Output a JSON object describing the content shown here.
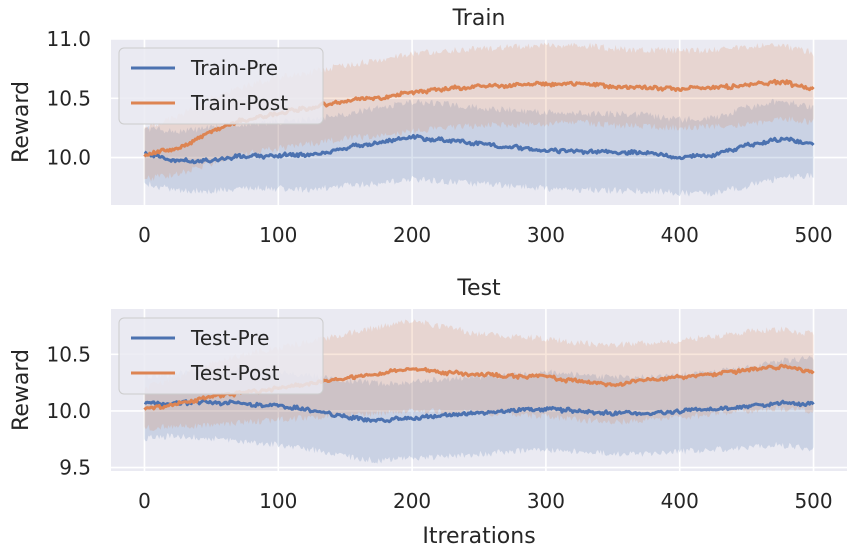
{
  "chart_data": [
    {
      "type": "line",
      "title": "Train",
      "xlabel": "",
      "ylabel": "Reward",
      "xlim": [
        -25,
        525
      ],
      "ylim": [
        9.6,
        11.0
      ],
      "xticks": [
        0,
        100,
        200,
        300,
        400,
        500
      ],
      "xtick_labels": [
        "0",
        "100",
        "200",
        "300",
        "400",
        "500"
      ],
      "yticks": [
        10.0,
        10.5,
        11.0
      ],
      "ytick_labels": [
        "10.0",
        "10.5",
        "11.0"
      ],
      "grid": true,
      "legend_position": "top-left",
      "x": [
        0,
        25,
        50,
        75,
        100,
        125,
        150,
        175,
        200,
        225,
        250,
        275,
        300,
        325,
        350,
        375,
        400,
        425,
        450,
        475,
        500
      ],
      "series": [
        {
          "name": "Train-Pre",
          "color": "#4c72b0",
          "values": [
            10.04,
            9.97,
            9.98,
            10.01,
            10.02,
            10.02,
            10.08,
            10.13,
            10.17,
            10.15,
            10.12,
            10.09,
            10.06,
            10.05,
            10.05,
            10.04,
            10.0,
            10.02,
            10.1,
            10.16,
            10.12
          ],
          "band_lower": [
            9.78,
            9.72,
            9.72,
            9.74,
            9.74,
            9.73,
            9.76,
            9.78,
            9.82,
            9.8,
            9.78,
            9.76,
            9.74,
            9.73,
            9.72,
            9.72,
            9.7,
            9.7,
            9.76,
            9.83,
            9.85
          ],
          "band_upper": [
            10.25,
            10.22,
            10.25,
            10.28,
            10.3,
            10.32,
            10.37,
            10.42,
            10.47,
            10.45,
            10.42,
            10.4,
            10.38,
            10.37,
            10.37,
            10.36,
            10.32,
            10.33,
            10.42,
            10.48,
            10.42
          ]
        },
        {
          "name": "Train-Post",
          "color": "#dd8452",
          "values": [
            10.02,
            10.08,
            10.22,
            10.32,
            10.38,
            10.42,
            10.48,
            10.5,
            10.55,
            10.58,
            10.6,
            10.61,
            10.62,
            10.63,
            10.6,
            10.59,
            10.58,
            10.59,
            10.61,
            10.64,
            10.58
          ],
          "band_lower": [
            9.82,
            9.86,
            9.95,
            10.03,
            10.08,
            10.12,
            10.16,
            10.18,
            10.22,
            10.25,
            10.27,
            10.28,
            10.29,
            10.3,
            10.27,
            10.26,
            10.25,
            10.26,
            10.28,
            10.33,
            10.3
          ],
          "band_upper": [
            10.25,
            10.35,
            10.5,
            10.6,
            10.68,
            10.72,
            10.78,
            10.82,
            10.88,
            10.9,
            10.92,
            10.93,
            10.94,
            10.95,
            10.92,
            10.91,
            10.9,
            10.91,
            10.93,
            10.95,
            10.88
          ]
        }
      ]
    },
    {
      "type": "line",
      "title": "Test",
      "xlabel": "Itrerations",
      "ylabel": "Reward",
      "xlim": [
        -25,
        525
      ],
      "ylim": [
        9.47,
        10.9
      ],
      "xticks": [
        0,
        100,
        200,
        300,
        400,
        500
      ],
      "xtick_labels": [
        "0",
        "100",
        "200",
        "300",
        "400",
        "500"
      ],
      "yticks": [
        9.5,
        10.0,
        10.5
      ],
      "ytick_labels": [
        "9.5",
        "10.0",
        "10.5"
      ],
      "grid": true,
      "legend_position": "top-left",
      "x": [
        0,
        25,
        50,
        75,
        100,
        125,
        150,
        175,
        200,
        225,
        250,
        275,
        300,
        325,
        350,
        375,
        400,
        425,
        450,
        475,
        500
      ],
      "series": [
        {
          "name": "Test-Pre",
          "color": "#4c72b0",
          "values": [
            10.06,
            10.07,
            10.08,
            10.06,
            10.04,
            10.01,
            9.95,
            9.91,
            9.94,
            9.96,
            9.98,
            10.0,
            10.02,
            10.0,
            9.98,
            9.98,
            10.0,
            10.02,
            10.04,
            10.07,
            10.06
          ],
          "band_lower": [
            9.76,
            9.78,
            9.76,
            9.73,
            9.7,
            9.66,
            9.6,
            9.56,
            9.58,
            9.6,
            9.62,
            9.64,
            9.66,
            9.64,
            9.62,
            9.62,
            9.64,
            9.66,
            9.68,
            9.7,
            9.66
          ],
          "band_upper": [
            10.3,
            10.33,
            10.36,
            10.36,
            10.34,
            10.31,
            10.27,
            10.24,
            10.26,
            10.28,
            10.3,
            10.32,
            10.34,
            10.32,
            10.3,
            10.3,
            10.32,
            10.34,
            10.38,
            10.44,
            10.47
          ]
        },
        {
          "name": "Test-Post",
          "color": "#dd8452",
          "values": [
            10.02,
            10.06,
            10.12,
            10.16,
            10.2,
            10.25,
            10.29,
            10.33,
            10.37,
            10.34,
            10.32,
            10.31,
            10.3,
            10.26,
            10.23,
            10.27,
            10.3,
            10.33,
            10.36,
            10.39,
            10.35
          ],
          "band_lower": [
            9.85,
            9.86,
            9.88,
            9.9,
            9.92,
            9.94,
            9.96,
            9.98,
            10.0,
            9.99,
            9.98,
            9.97,
            9.95,
            9.92,
            9.9,
            9.92,
            9.94,
            9.97,
            10.0,
            10.02,
            10.0
          ],
          "band_upper": [
            10.2,
            10.3,
            10.42,
            10.5,
            10.56,
            10.62,
            10.68,
            10.74,
            10.8,
            10.74,
            10.68,
            10.66,
            10.64,
            10.6,
            10.58,
            10.6,
            10.62,
            10.66,
            10.7,
            10.72,
            10.68
          ]
        }
      ]
    }
  ]
}
